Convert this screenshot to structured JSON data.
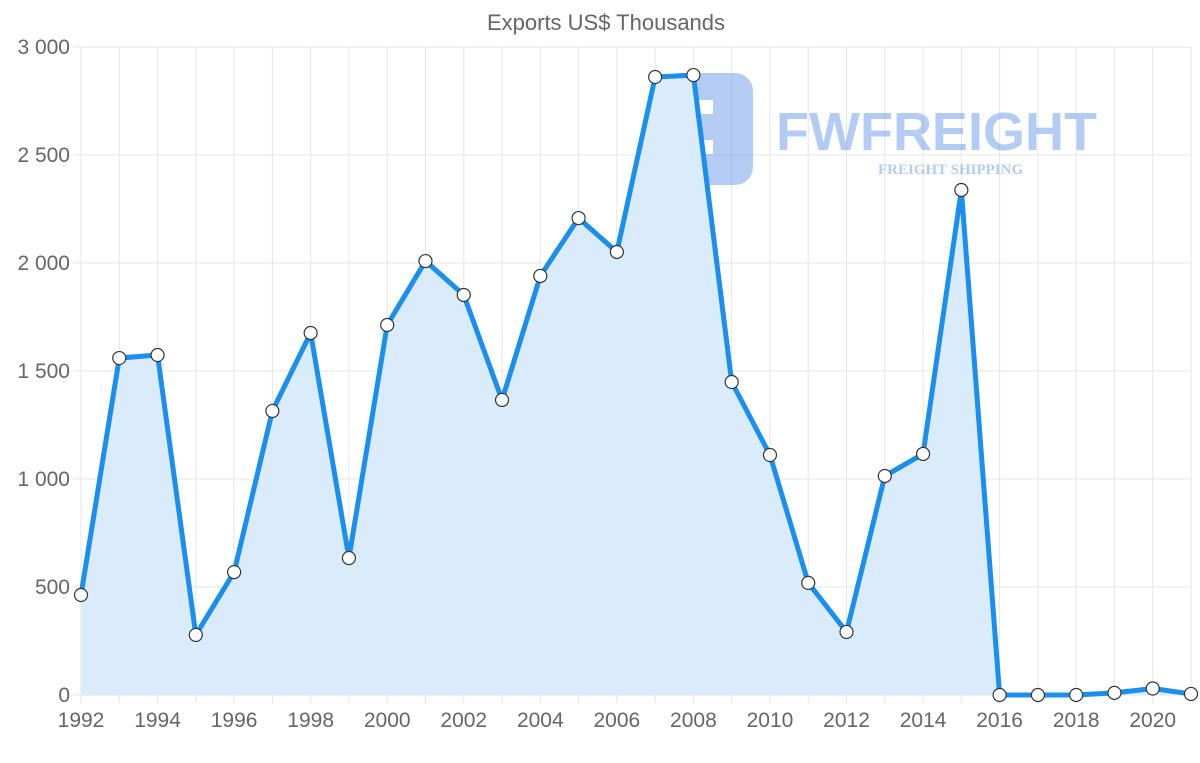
{
  "chart_data": {
    "type": "area",
    "title": "Exports US$ Thousands",
    "xlabel": "",
    "ylabel": "",
    "x": [
      1992,
      1993,
      1994,
      1995,
      1996,
      1997,
      1998,
      1999,
      2000,
      2001,
      2002,
      2003,
      2004,
      2005,
      2006,
      2007,
      2008,
      2009,
      2010,
      2011,
      2012,
      2013,
      2014,
      2015,
      2016,
      2017,
      2018,
      2019,
      2020,
      2021
    ],
    "series": [
      {
        "name": "Exports US$ Thousands",
        "values": [
          463,
          1560,
          1574,
          278,
          569,
          1315,
          1676,
          634,
          1713,
          2009,
          1852,
          1366,
          1940,
          2208,
          2051,
          2861,
          2870,
          1449,
          1111,
          519,
          292,
          1014,
          1116,
          2338,
          0,
          0,
          0,
          10,
          30,
          5
        ]
      }
    ],
    "ylim": [
      0,
      3000
    ],
    "yticks": [
      0,
      500,
      1000,
      1500,
      2000,
      2500,
      3000
    ],
    "ytick_labels": [
      "0",
      "500",
      "1 000",
      "1 500",
      "2 000",
      "2 500",
      "3 000"
    ],
    "xtick_labels": [
      "1992",
      "1994",
      "1996",
      "1998",
      "2000",
      "2002",
      "2004",
      "2006",
      "2008",
      "2010",
      "2012",
      "2014",
      "2016",
      "2018",
      "2020"
    ],
    "grid": true,
    "line_color": "#1a8fef",
    "fill_color": "#daecfc"
  },
  "watermark": {
    "brand": "FWFREIGHT",
    "tagline": "FREIGHT SHIPPING"
  }
}
